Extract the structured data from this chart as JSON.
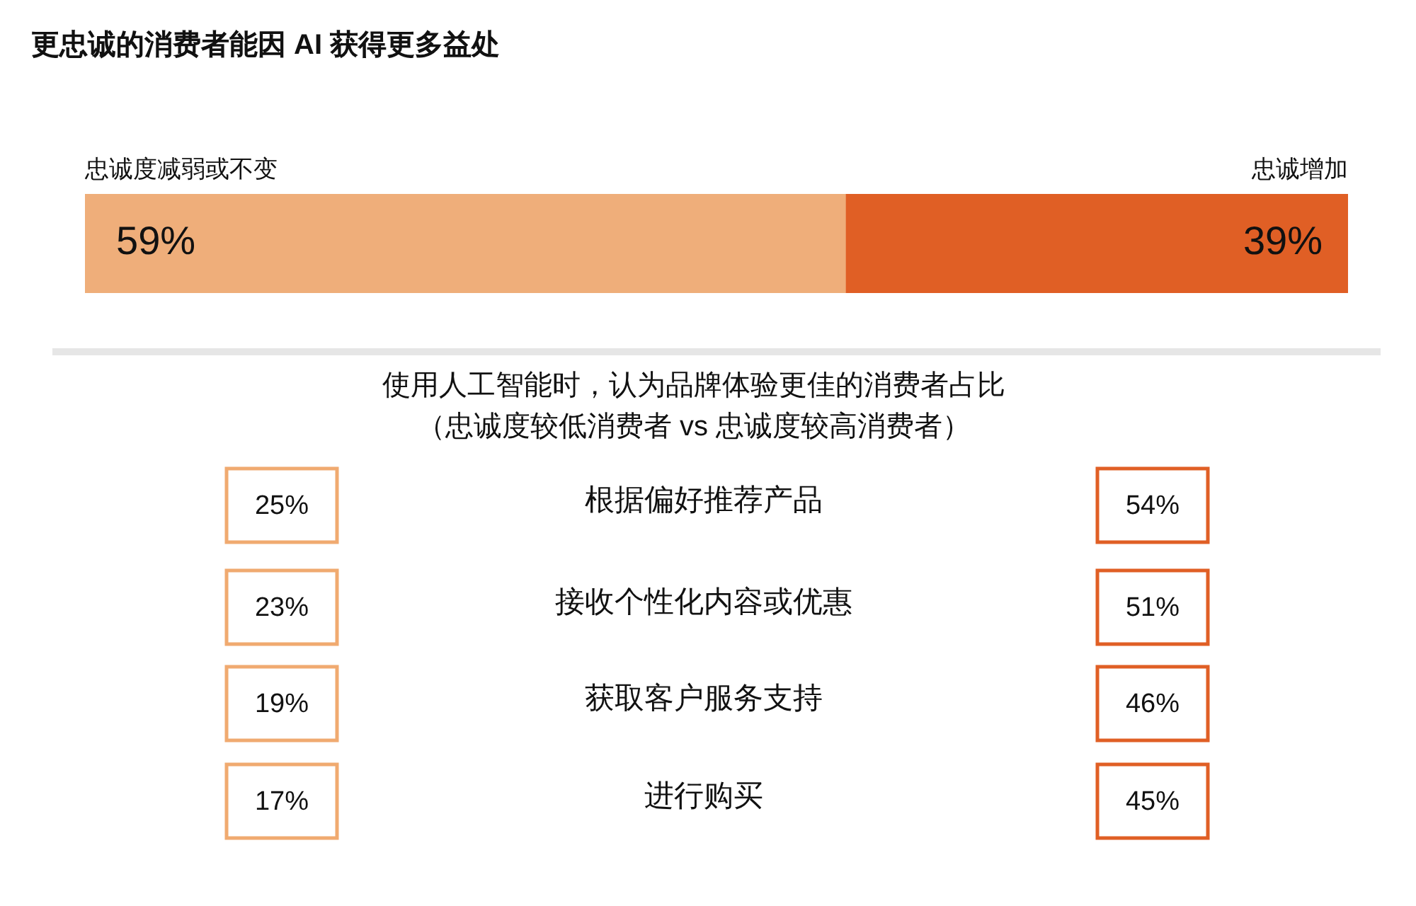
{
  "chart_data": [
    {
      "type": "bar",
      "title": "更忠诚的消费者能因 AI 获得更多益处",
      "orientation": "horizontal",
      "stacked": true,
      "categories": [
        null
      ],
      "legend": false,
      "series": [
        {
          "name": "忠诚度减弱或不变",
          "color": "#efae7a",
          "values": [
            59
          ],
          "value_labels": [
            "59%"
          ]
        },
        {
          "name": "忠诚增加",
          "color": "#e05f25",
          "values": [
            39
          ],
          "value_labels": [
            "39%"
          ]
        }
      ]
    },
    {
      "type": "other",
      "title": "使用人工智能时，认为品牌体验更佳的消费者占比",
      "subtitle": "（忠诚度较低消费者 vs 忠诚度较高消费者）",
      "categories": [
        "根据偏好推荐产品",
        "接收个性化内容或优惠",
        "获取客户服务支持",
        "进行购买"
      ],
      "series": [
        {
          "color": "#f0aa70",
          "values": [
            25,
            23,
            19,
            17
          ],
          "value_labels": [
            "25%",
            "23%",
            "19%",
            "17%"
          ]
        },
        {
          "color": "#e05f25",
          "values": [
            54,
            51,
            46,
            45
          ],
          "value_labels": [
            "54%",
            "51%",
            "46%",
            "45%"
          ]
        }
      ]
    }
  ]
}
